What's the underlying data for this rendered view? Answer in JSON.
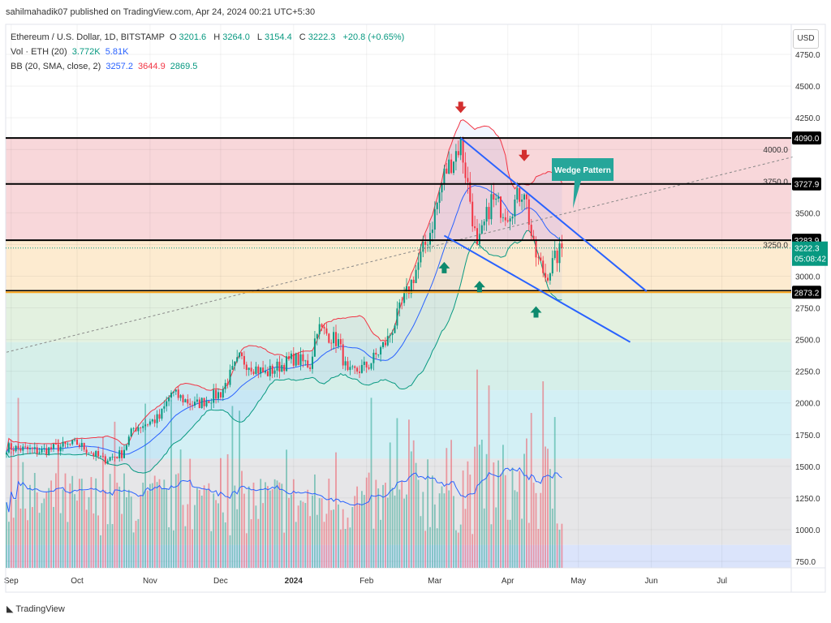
{
  "header": {
    "published": "sahilmahadik07 published on TradingView.com, Apr 24, 2024 00:21 UTC+5:30"
  },
  "legend": {
    "symbol": "Ethereum / U.S. Dollar, 1D, BITSTAMP",
    "o_label": "O",
    "o": "3201.6",
    "h_label": "H",
    "h": "3264.0",
    "l_label": "L",
    "l": "3154.4",
    "c_label": "C",
    "c": "3222.3",
    "change": "+20.8 (+0.65%)",
    "vol_label": "Vol · ETH (20)",
    "vol1": "3.772K",
    "vol2": "5.81K",
    "bb_label": "BB (20, SMA, close, 2)",
    "bb_basis": "3257.2",
    "bb_upper": "3644.9",
    "bb_lower": "2869.5"
  },
  "currency": "USD",
  "footer": {
    "brand": "TradingView"
  },
  "colors": {
    "up": "#089981",
    "down": "#f23645",
    "basis": "#2962ff",
    "upper": "#f23645",
    "lower": "#089981",
    "wedge": "#2962ff",
    "callout": "#26a69a"
  },
  "chart_data": {
    "type": "candlestick",
    "title": "Ethereum / U.S. Dollar, 1D, BITSTAMP",
    "ylim": [
      700,
      4900
    ],
    "y_ticks": [
      4750,
      4500,
      4250,
      4000,
      3750,
      3500,
      3250,
      3000,
      2750,
      2500,
      2250,
      2000,
      1750,
      1500,
      1250,
      1000,
      750
    ],
    "x_labels": [
      {
        "date": "2023-09-03",
        "label": "Sep"
      },
      {
        "date": "2023-10-01",
        "label": "Oct"
      },
      {
        "date": "2023-11-01",
        "label": "Nov"
      },
      {
        "date": "2023-12-01",
        "label": "Dec"
      },
      {
        "date": "2024-01-01",
        "label": "2024"
      },
      {
        "date": "2024-02-01",
        "label": "Feb"
      },
      {
        "date": "2024-03-01",
        "label": "Mar"
      },
      {
        "date": "2024-04-01",
        "label": "Apr"
      },
      {
        "date": "2024-05-01",
        "label": "May"
      },
      {
        "date": "2024-06-01",
        "label": "Jun"
      },
      {
        "date": "2024-07-01",
        "label": "Jul"
      }
    ],
    "start_date": "2023-09-01",
    "close_keypoints": [
      [
        "2023-09-01",
        1650
      ],
      [
        "2023-09-15",
        1620
      ],
      [
        "2023-10-01",
        1680
      ],
      [
        "2023-10-12",
        1550
      ],
      [
        "2023-10-20",
        1600
      ],
      [
        "2023-10-25",
        1800
      ],
      [
        "2023-11-05",
        1880
      ],
      [
        "2023-11-10",
        2080
      ],
      [
        "2023-11-20",
        1980
      ],
      [
        "2023-12-01",
        2080
      ],
      [
        "2023-12-09",
        2350
      ],
      [
        "2023-12-20",
        2230
      ],
      [
        "2024-01-01",
        2350
      ],
      [
        "2024-01-08",
        2300
      ],
      [
        "2024-01-11",
        2600
      ],
      [
        "2024-01-20",
        2480
      ],
      [
        "2024-01-24",
        2220
      ],
      [
        "2024-02-02",
        2300
      ],
      [
        "2024-02-10",
        2500
      ],
      [
        "2024-02-20",
        2950
      ],
      [
        "2024-02-28",
        3350
      ],
      [
        "2024-03-05",
        3800
      ],
      [
        "2024-03-12",
        4050
      ],
      [
        "2024-03-16",
        3600
      ],
      [
        "2024-03-19",
        3200
      ],
      [
        "2024-03-25",
        3600
      ],
      [
        "2024-04-01",
        3500
      ],
      [
        "2024-04-08",
        3700
      ],
      [
        "2024-04-12",
        3200
      ],
      [
        "2024-04-17",
        3000
      ],
      [
        "2024-04-24",
        3222
      ]
    ],
    "last_price": "3222.3",
    "countdown": "05:08:42",
    "levels": [
      {
        "price": 4090.0,
        "label": "4090.0"
      },
      {
        "price": 3727.9,
        "label": "3727.9"
      },
      {
        "price": 3283.9,
        "label": "3283.9"
      },
      {
        "price": 2873.2,
        "label": "2873.2"
      }
    ],
    "zones": [
      {
        "from": 4090,
        "to": 3283.9,
        "color": "#f8d7da"
      },
      {
        "from": 3283.9,
        "to": 2873.2,
        "color": "#fdebd0"
      },
      {
        "from": 2873.2,
        "to": 2480,
        "color": "#e3f1e0"
      },
      {
        "from": 2480,
        "to": 2100,
        "color": "#d6efe9"
      },
      {
        "from": 2100,
        "to": 1560,
        "color": "#d3f0f5"
      },
      {
        "from": 1560,
        "to": 880,
        "color": "#e6e6e8"
      },
      {
        "from": 880,
        "to": 700,
        "color": "#dbe4fb"
      }
    ],
    "wedge_upper": [
      [
        "2024-03-12",
        4090
      ],
      [
        "2024-05-30",
        2880
      ]
    ],
    "wedge_lower": [
      [
        "2024-03-05",
        3320
      ],
      [
        "2024-05-23",
        2480
      ]
    ],
    "trend_dashed": [
      [
        "2023-09-01",
        2400
      ],
      [
        "2024-07-31",
        3940
      ]
    ],
    "arrows": [
      {
        "date": "2024-03-12",
        "dir": "down",
        "price": 4300
      },
      {
        "date": "2024-04-08",
        "dir": "down",
        "price": 3920
      },
      {
        "date": "2024-03-05",
        "dir": "up",
        "price": 3100
      },
      {
        "date": "2024-03-20",
        "dir": "up",
        "price": 2950
      },
      {
        "date": "2024-04-13",
        "dir": "up",
        "price": 2750
      }
    ],
    "annotation": "Wedge Pattern"
  }
}
